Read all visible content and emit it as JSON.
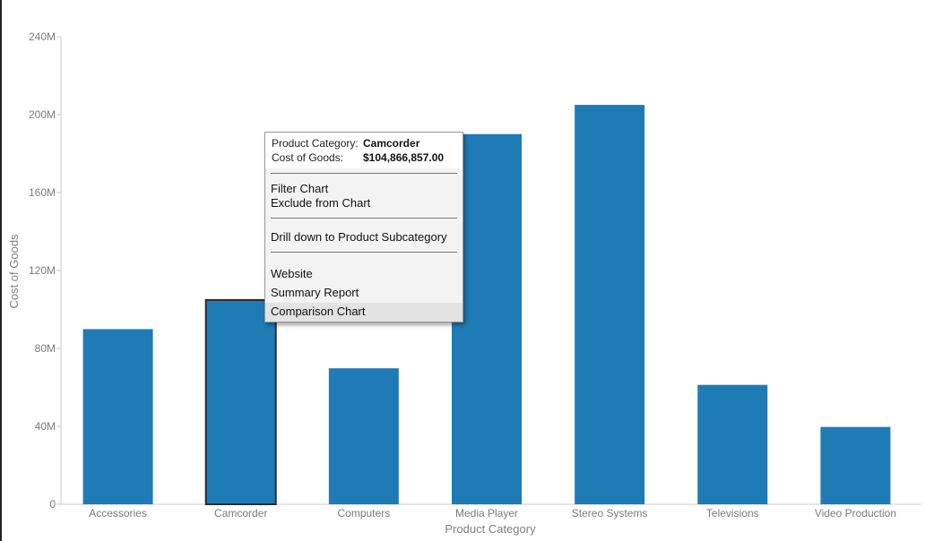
{
  "chart_data": {
    "type": "bar",
    "categories": [
      "Accessories",
      "Camcorder",
      "Computers",
      "Media Player",
      "Stereo Systems",
      "Televisions",
      "Video Production"
    ],
    "values": [
      89900000,
      104866857,
      69800000,
      190000000,
      205000000,
      61300000,
      39700000
    ],
    "xlabel": "Product Category",
    "ylabel": "Cost of Goods",
    "ylim": [
      0,
      240000000
    ],
    "yticks": [
      0,
      40000000,
      80000000,
      120000000,
      160000000,
      200000000,
      240000000
    ],
    "ytick_labels": [
      "0",
      "40M",
      "80M",
      "120M",
      "160M",
      "200M",
      "240M"
    ],
    "grid": false,
    "bar_color": "#1f7bb6",
    "selected_category": "Camcorder"
  },
  "tooltip": {
    "info": [
      {
        "key": "Product Category:",
        "value": "Camcorder"
      },
      {
        "key": "Cost of Goods:",
        "value": "$104,866,857.00"
      }
    ],
    "menu": {
      "filter_chart": "Filter Chart",
      "exclude_from_chart": "Exclude from Chart",
      "drill_down": "Drill down to Product Subcategory",
      "website": "Website",
      "summary_report": "Summary Report",
      "comparison_chart": "Comparison Chart"
    }
  }
}
